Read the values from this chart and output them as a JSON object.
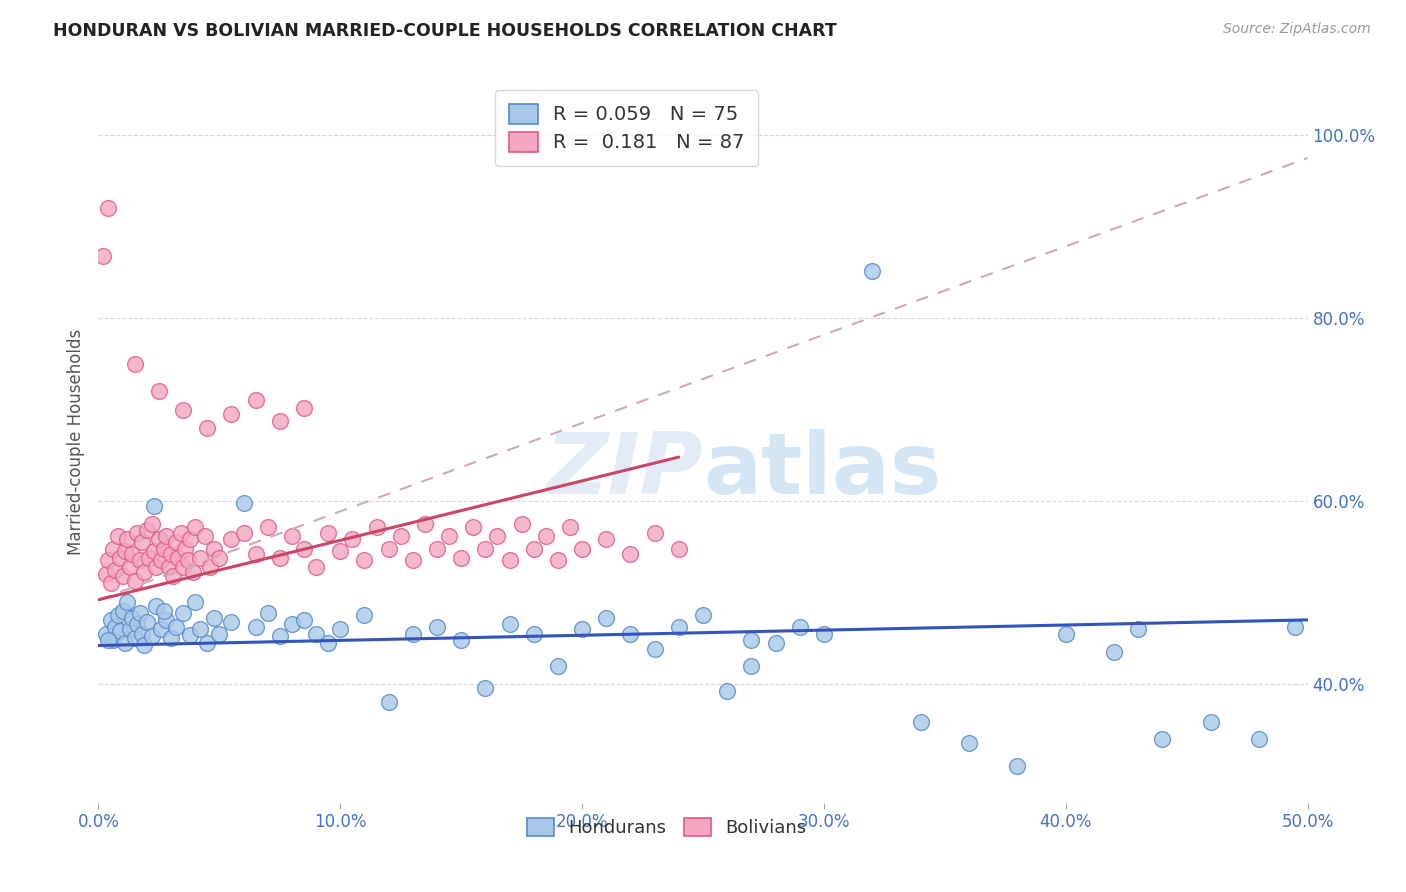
{
  "title": "HONDURAN VS BOLIVIAN MARRIED-COUPLE HOUSEHOLDS CORRELATION CHART",
  "source": "Source: ZipAtlas.com",
  "ylabel_label": "Married-couple Households",
  "xlim": [
    0.0,
    0.5
  ],
  "ylim": [
    0.27,
    1.06
  ],
  "honduran_face_color": "#a8c8e8",
  "honduran_edge_color": "#5588cc",
  "bolivian_face_color": "#f4a8c0",
  "bolivian_edge_color": "#e05888",
  "trend_honduran_color": "#3355bb",
  "trend_bolivian_color": "#cc4466",
  "trend_dashed_color": "#ccaabb",
  "background_color": "#ffffff",
  "grid_color": "#cccccc",
  "tick_color": "#4472c4",
  "hondurans_R": 0.059,
  "hondurans_N": 75,
  "bolivians_R": 0.181,
  "bolivians_N": 87,
  "hon_x": [
    0.003,
    0.005,
    0.006,
    0.007,
    0.008,
    0.009,
    0.01,
    0.011,
    0.012,
    0.013,
    0.014,
    0.015,
    0.016,
    0.017,
    0.018,
    0.019,
    0.02,
    0.022,
    0.024,
    0.026,
    0.028,
    0.03,
    0.032,
    0.035,
    0.038,
    0.04,
    0.042,
    0.045,
    0.048,
    0.05,
    0.055,
    0.06,
    0.065,
    0.07,
    0.075,
    0.08,
    0.085,
    0.09,
    0.095,
    0.1,
    0.11,
    0.12,
    0.13,
    0.14,
    0.15,
    0.16,
    0.17,
    0.18,
    0.19,
    0.2,
    0.21,
    0.22,
    0.23,
    0.24,
    0.25,
    0.26,
    0.27,
    0.28,
    0.29,
    0.3,
    0.32,
    0.34,
    0.36,
    0.38,
    0.4,
    0.42,
    0.44,
    0.46,
    0.48,
    0.495,
    0.004,
    0.023,
    0.027,
    0.43,
    0.27
  ],
  "hon_y": [
    0.455,
    0.47,
    0.448,
    0.462,
    0.475,
    0.458,
    0.48,
    0.445,
    0.49,
    0.46,
    0.472,
    0.45,
    0.465,
    0.478,
    0.455,
    0.442,
    0.468,
    0.452,
    0.485,
    0.46,
    0.47,
    0.45,
    0.462,
    0.478,
    0.453,
    0.49,
    0.46,
    0.445,
    0.472,
    0.455,
    0.468,
    0.598,
    0.462,
    0.478,
    0.452,
    0.465,
    0.47,
    0.455,
    0.445,
    0.46,
    0.475,
    0.38,
    0.455,
    0.462,
    0.448,
    0.395,
    0.465,
    0.455,
    0.42,
    0.46,
    0.472,
    0.455,
    0.438,
    0.462,
    0.475,
    0.392,
    0.42,
    0.445,
    0.462,
    0.455,
    0.852,
    0.358,
    0.335,
    0.31,
    0.455,
    0.435,
    0.34,
    0.358,
    0.34,
    0.462,
    0.448,
    0.595,
    0.48,
    0.46,
    0.448
  ],
  "bol_x": [
    0.003,
    0.004,
    0.005,
    0.006,
    0.007,
    0.008,
    0.009,
    0.01,
    0.011,
    0.012,
    0.013,
    0.014,
    0.015,
    0.016,
    0.017,
    0.018,
    0.019,
    0.02,
    0.021,
    0.022,
    0.023,
    0.024,
    0.025,
    0.026,
    0.027,
    0.028,
    0.029,
    0.03,
    0.031,
    0.032,
    0.033,
    0.034,
    0.035,
    0.036,
    0.037,
    0.038,
    0.039,
    0.04,
    0.042,
    0.044,
    0.046,
    0.048,
    0.05,
    0.055,
    0.06,
    0.065,
    0.07,
    0.075,
    0.08,
    0.085,
    0.09,
    0.095,
    0.1,
    0.105,
    0.11,
    0.115,
    0.12,
    0.125,
    0.13,
    0.135,
    0.14,
    0.145,
    0.15,
    0.155,
    0.16,
    0.165,
    0.17,
    0.175,
    0.18,
    0.185,
    0.19,
    0.195,
    0.2,
    0.21,
    0.22,
    0.23,
    0.24,
    0.015,
    0.025,
    0.035,
    0.045,
    0.055,
    0.065,
    0.075,
    0.085,
    0.002,
    0.004
  ],
  "bol_y": [
    0.52,
    0.535,
    0.51,
    0.548,
    0.525,
    0.562,
    0.538,
    0.518,
    0.545,
    0.558,
    0.528,
    0.542,
    0.512,
    0.565,
    0.535,
    0.555,
    0.522,
    0.568,
    0.538,
    0.575,
    0.545,
    0.528,
    0.558,
    0.535,
    0.548,
    0.562,
    0.528,
    0.542,
    0.518,
    0.555,
    0.538,
    0.565,
    0.528,
    0.548,
    0.535,
    0.558,
    0.522,
    0.572,
    0.538,
    0.562,
    0.528,
    0.548,
    0.538,
    0.558,
    0.565,
    0.542,
    0.572,
    0.538,
    0.562,
    0.548,
    0.528,
    0.565,
    0.545,
    0.558,
    0.535,
    0.572,
    0.548,
    0.562,
    0.535,
    0.575,
    0.548,
    0.562,
    0.538,
    0.572,
    0.548,
    0.562,
    0.535,
    0.575,
    0.548,
    0.562,
    0.535,
    0.572,
    0.548,
    0.558,
    0.542,
    0.565,
    0.548,
    0.75,
    0.72,
    0.7,
    0.68,
    0.695,
    0.71,
    0.688,
    0.702,
    0.868,
    0.92
  ],
  "trend_hon_x0": 0.0,
  "trend_hon_x1": 0.5,
  "trend_hon_y0": 0.442,
  "trend_hon_y1": 0.47,
  "trend_bol_solid_x0": 0.0,
  "trend_bol_solid_x1": 0.24,
  "trend_bol_solid_y0": 0.492,
  "trend_bol_solid_y1": 0.648,
  "trend_bol_dash_x0": 0.0,
  "trend_bol_dash_x1": 0.5,
  "trend_bol_dash_y0": 0.492,
  "trend_bol_dash_y1": 0.975
}
